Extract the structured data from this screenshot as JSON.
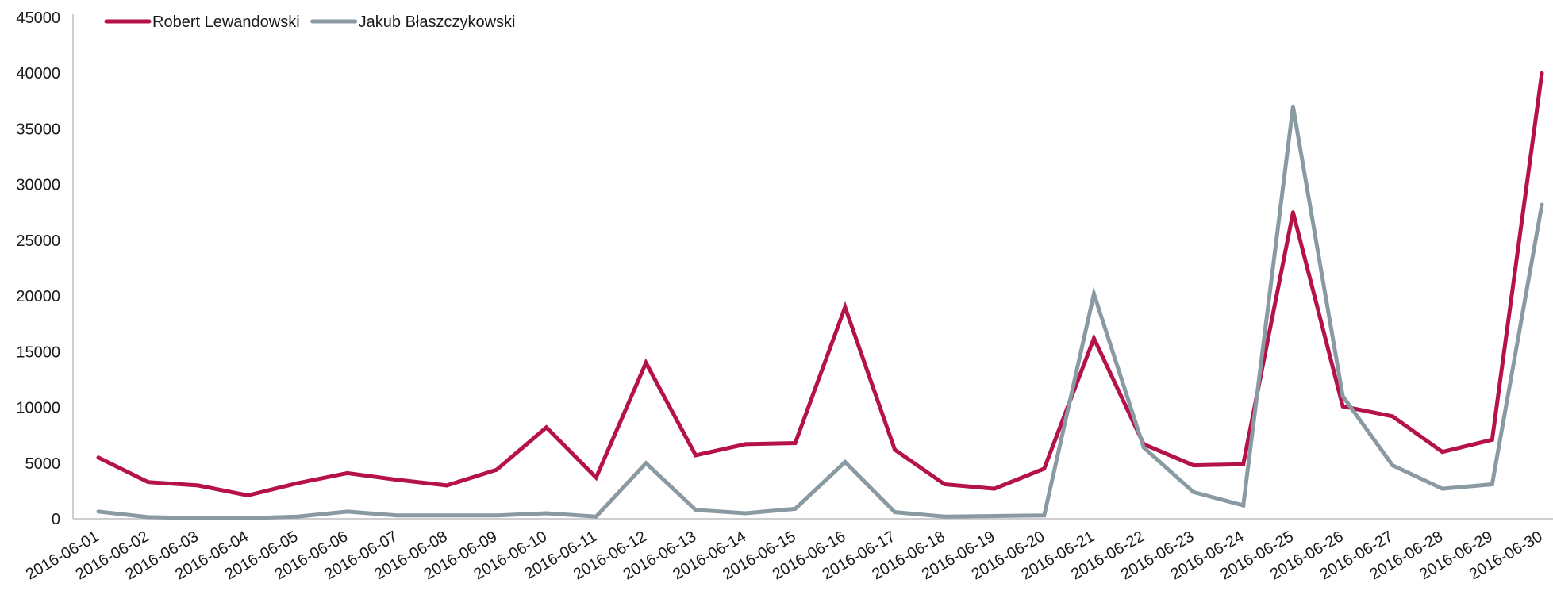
{
  "chart_data": {
    "type": "line",
    "categories": [
      "2016-06-01",
      "2016-06-02",
      "2016-06-03",
      "2016-06-04",
      "2016-06-05",
      "2016-06-06",
      "2016-06-07",
      "2016-06-08",
      "2016-06-09",
      "2016-06-10",
      "2016-06-11",
      "2016-06-12",
      "2016-06-13",
      "2016-06-14",
      "2016-06-15",
      "2016-06-16",
      "2016-06-17",
      "2016-06-18",
      "2016-06-19",
      "2016-06-20",
      "2016-06-21",
      "2016-06-22",
      "2016-06-23",
      "2016-06-24",
      "2016-06-25",
      "2016-06-26",
      "2016-06-27",
      "2016-06-28",
      "2016-06-29",
      "2016-06-30"
    ],
    "series": [
      {
        "name": "Robert Lewandowski",
        "color": "#b5124a",
        "values": [
          5500,
          3300,
          3000,
          2100,
          3200,
          4100,
          3500,
          3000,
          4400,
          8200,
          3700,
          14000,
          5700,
          6700,
          6800,
          19000,
          6200,
          3100,
          2700,
          4500,
          16200,
          6700,
          4800,
          4900,
          27500,
          10100,
          9200,
          6000,
          7100,
          40000
        ]
      },
      {
        "name": "Jakub Błaszczykowski",
        "color": "#8a9aa3",
        "values": [
          650,
          150,
          50,
          50,
          200,
          650,
          300,
          300,
          300,
          500,
          200,
          5000,
          800,
          500,
          900,
          5100,
          600,
          200,
          250,
          300,
          20200,
          6400,
          2400,
          1200,
          37000,
          11000,
          4800,
          2700,
          3100,
          28200
        ]
      }
    ],
    "xlabel": "",
    "ylabel": "",
    "ylim": [
      0,
      45000
    ],
    "yticks": [
      0,
      5000,
      10000,
      15000,
      20000,
      25000,
      30000,
      35000,
      40000,
      45000
    ],
    "grid": false,
    "legend_position": "top-left"
  }
}
